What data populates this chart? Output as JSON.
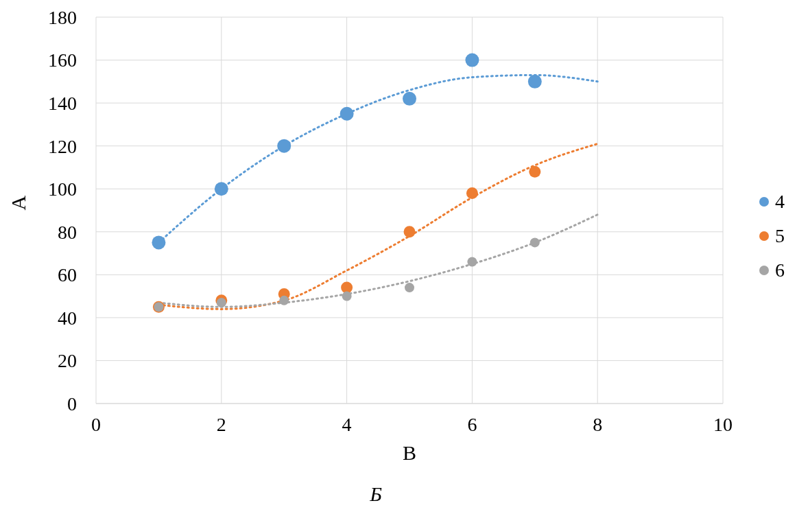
{
  "chart_data": {
    "type": "scatter",
    "xlabel": "В",
    "ylabel": "А",
    "annotations": [
      "Б"
    ],
    "xlim": [
      0,
      10
    ],
    "xticks": [
      0,
      2,
      4,
      6,
      8,
      10
    ],
    "ylim": [
      0,
      180
    ],
    "yticks": [
      0,
      20,
      40,
      60,
      80,
      100,
      120,
      140,
      160,
      180
    ],
    "grid": true,
    "legend": "right",
    "marker": "circle",
    "series": [
      {
        "name": "4",
        "color": "#5b9bd5",
        "x": [
          1,
          2,
          3,
          4,
          5,
          6,
          7
        ],
        "values": [
          75,
          100,
          120,
          135,
          142,
          160,
          150
        ]
      },
      {
        "name": "5",
        "color": "#ed7d31",
        "x": [
          1,
          2,
          3,
          4,
          5,
          6,
          7
        ],
        "values": [
          45,
          48,
          51,
          54,
          80,
          98,
          108
        ]
      },
      {
        "name": "6",
        "color": "#a5a5a5",
        "x": [
          1,
          2,
          3,
          4,
          5,
          6,
          7
        ],
        "values": [
          45,
          47,
          48,
          50,
          54,
          66,
          75
        ]
      },
      {
        "type": "line",
        "line_style": "dotted",
        "marker": "none",
        "color": "#5b9bd5",
        "x": [
          1,
          2,
          3,
          4,
          5,
          6,
          7,
          8
        ],
        "values": [
          75,
          100,
          120,
          135,
          146,
          152,
          153,
          150
        ]
      },
      {
        "type": "line",
        "line_style": "dotted",
        "marker": "none",
        "color": "#ed7d31",
        "x": [
          1,
          2,
          3,
          4,
          5,
          6,
          7,
          8
        ],
        "values": [
          46,
          44,
          48,
          62,
          78,
          96,
          111,
          121
        ]
      },
      {
        "type": "line",
        "line_style": "dotted",
        "marker": "none",
        "color": "#a5a5a5",
        "x": [
          1,
          2,
          3,
          4,
          5,
          6,
          7,
          8
        ],
        "values": [
          47,
          45,
          47,
          51,
          57,
          65,
          75,
          88
        ]
      }
    ]
  }
}
